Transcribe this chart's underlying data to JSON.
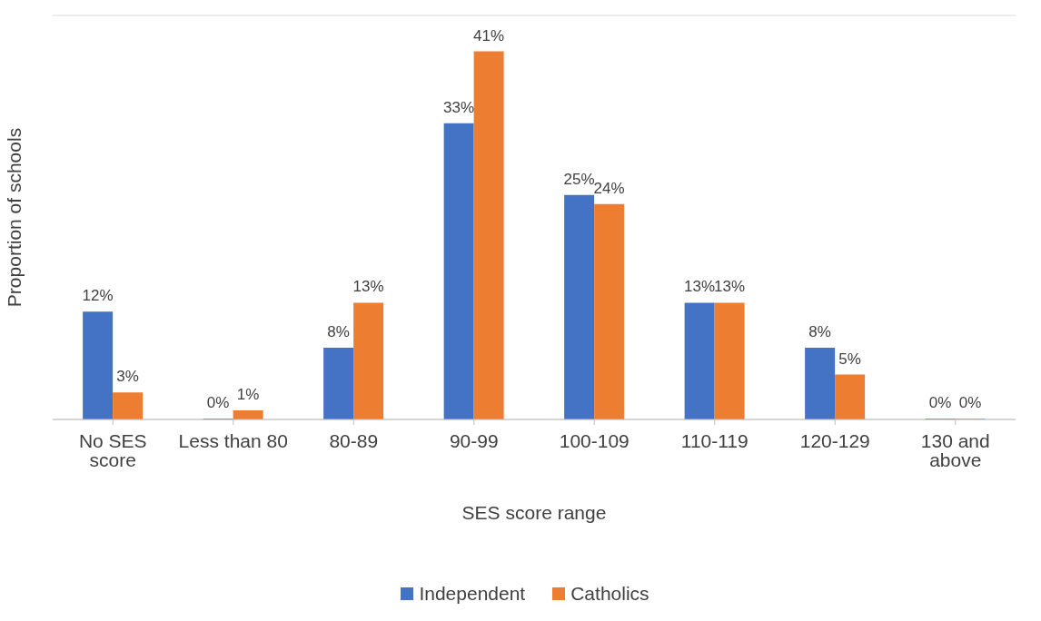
{
  "chart_data": {
    "type": "bar",
    "xlabel": "SES score range",
    "ylabel": "Proportion of schools",
    "categories": [
      "No SES score",
      "Less than 80",
      "80-89",
      "90-99",
      "100-109",
      "110-119",
      "120-129",
      "130 and above"
    ],
    "series": [
      {
        "name": "Independent",
        "color": "#4472c4",
        "values": [
          12,
          0,
          8,
          33,
          25,
          13,
          8,
          0
        ],
        "value_labels": [
          "12%",
          "0%",
          "8%",
          "33%",
          "25%",
          "13%",
          "8%",
          "0%"
        ]
      },
      {
        "name": "Catholics",
        "color": "#ed7d31",
        "values": [
          3,
          1,
          13,
          41,
          24,
          13,
          5,
          0
        ],
        "value_labels": [
          "3%",
          "1%",
          "13%",
          "41%",
          "24%",
          "13%",
          "5%",
          "0%"
        ]
      }
    ],
    "ylim": [
      0,
      45
    ],
    "tick_labels": "x",
    "grid": "y",
    "legend": "bottom"
  }
}
